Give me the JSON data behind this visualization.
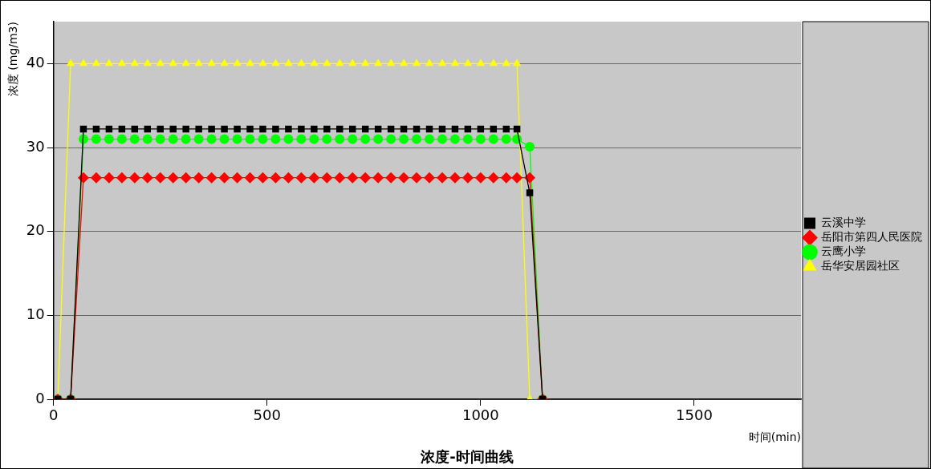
{
  "chart_data": {
    "type": "line",
    "title": "浓度-时间曲线",
    "xlabel": "时间(min)",
    "ylabel": "浓度 (mg/m3)",
    "x": [
      10,
      40,
      70,
      100,
      130,
      160,
      190,
      220,
      250,
      280,
      310,
      340,
      370,
      400,
      430,
      460,
      490,
      520,
      550,
      580,
      610,
      640,
      670,
      700,
      730,
      760,
      790,
      820,
      850,
      880,
      910,
      940,
      970,
      1000,
      1030,
      1060,
      1085,
      1115,
      1145
    ],
    "series": [
      {
        "name": "云溪中学",
        "color": "#000000",
        "marker": "square",
        "values": [
          0,
          0,
          32.2,
          32.2,
          32.2,
          32.2,
          32.2,
          32.2,
          32.2,
          32.2,
          32.2,
          32.2,
          32.2,
          32.2,
          32.2,
          32.2,
          32.2,
          32.2,
          32.2,
          32.2,
          32.2,
          32.2,
          32.2,
          32.2,
          32.2,
          32.2,
          32.2,
          32.2,
          32.2,
          32.2,
          32.2,
          32.2,
          32.2,
          32.2,
          32.2,
          32.2,
          32.2,
          24.6,
          0
        ]
      },
      {
        "name": "岳阳市第四人民医院",
        "color": "#ff0000",
        "marker": "diamond",
        "values": [
          0,
          0,
          26.4,
          26.4,
          26.4,
          26.4,
          26.4,
          26.4,
          26.4,
          26.4,
          26.4,
          26.4,
          26.4,
          26.4,
          26.4,
          26.4,
          26.4,
          26.4,
          26.4,
          26.4,
          26.4,
          26.4,
          26.4,
          26.4,
          26.4,
          26.4,
          26.4,
          26.4,
          26.4,
          26.4,
          26.4,
          26.4,
          26.4,
          26.4,
          26.4,
          26.4,
          26.4,
          26.4,
          0
        ]
      },
      {
        "name": "云鹰小学",
        "color": "#00ff00",
        "marker": "circle",
        "values": [
          0,
          0,
          31,
          31,
          31,
          31,
          31,
          31,
          31,
          31,
          31,
          31,
          31,
          31,
          31,
          31,
          31,
          31,
          31,
          31,
          31,
          31,
          31,
          31,
          31,
          31,
          31,
          31,
          31,
          31,
          31,
          31,
          31,
          31,
          31,
          31,
          31,
          30.1,
          0
        ]
      },
      {
        "name": "岳华安居园社区",
        "color": "#ffff00",
        "marker": "triangle",
        "values": [
          0,
          40,
          40,
          40,
          40,
          40,
          40,
          40,
          40,
          40,
          40,
          40,
          40,
          40,
          40,
          40,
          40,
          40,
          40,
          40,
          40,
          40,
          40,
          40,
          40,
          40,
          40,
          40,
          40,
          40,
          40,
          40,
          40,
          40,
          40,
          40,
          40,
          0,
          0
        ]
      }
    ],
    "xlim": [
      0,
      1750
    ],
    "xticks": [
      0,
      500,
      1000,
      1500
    ],
    "ylim": [
      0,
      45
    ],
    "yticks": [
      0,
      10,
      20,
      30,
      40
    ],
    "grid": "y",
    "legend": "right"
  }
}
